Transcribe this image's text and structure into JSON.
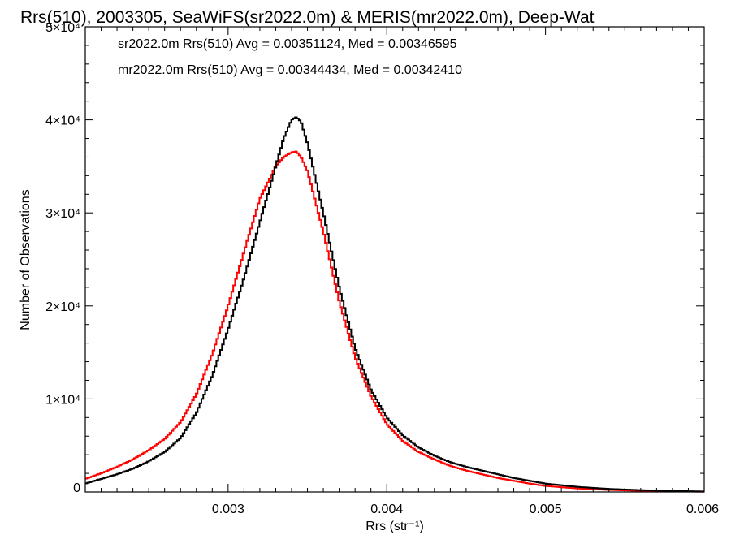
{
  "chart_data": {
    "type": "line",
    "title": "Rrs(510), 2003305, SeaWiFS(sr2022.0m) & MERIS(mr2022.0m), Deep-Wat",
    "xlabel": "Rrs (str⁻¹)",
    "ylabel": "Number of Observations",
    "xlim": [
      0.0021,
      0.006
    ],
    "ylim": [
      0,
      50000
    ],
    "x_ticks": [
      {
        "value": 0.003,
        "label": "0.003"
      },
      {
        "value": 0.004,
        "label": "0.004"
      },
      {
        "value": 0.005,
        "label": "0.005"
      },
      {
        "value": 0.006,
        "label": "0.006"
      }
    ],
    "y_ticks": [
      {
        "value": 0,
        "label": "0"
      },
      {
        "value": 10000,
        "label": "1×10⁴"
      },
      {
        "value": 20000,
        "label": "2×10⁴"
      },
      {
        "value": 30000,
        "label": "3×10⁴"
      },
      {
        "value": 40000,
        "label": "4×10⁴"
      },
      {
        "value": 50000,
        "label": "5×10⁴"
      }
    ],
    "annotations": [
      {
        "text": "sr2022.0m Rrs(510) Avg = 0.00351124, Med = 0.00346595",
        "color": "#000000"
      },
      {
        "text": "mr2022.0m Rrs(510) Avg = 0.00344434, Med = 0.00342410",
        "color": "#ff0000"
      }
    ],
    "series": [
      {
        "color": "#000000",
        "x": [
          0.0021,
          0.0022,
          0.0023,
          0.0024,
          0.0025,
          0.0026,
          0.0027,
          0.0028,
          0.0029,
          0.003,
          0.0031,
          0.0032,
          0.0033,
          0.00335,
          0.0034,
          0.00343,
          0.00346,
          0.0035,
          0.0036,
          0.0037,
          0.0038,
          0.0039,
          0.004,
          0.0041,
          0.0042,
          0.0043,
          0.0044,
          0.0045,
          0.0046,
          0.0047,
          0.0048,
          0.0049,
          0.005,
          0.0052,
          0.0054,
          0.0056,
          0.0058,
          0.006
        ],
        "values": [
          900,
          1400,
          1900,
          2500,
          3300,
          4300,
          5800,
          8500,
          12500,
          17500,
          23000,
          29000,
          35000,
          38000,
          40000,
          40300,
          39800,
          37500,
          30000,
          22000,
          15500,
          11000,
          8000,
          6100,
          4800,
          3900,
          3200,
          2700,
          2300,
          1900,
          1500,
          1200,
          900,
          550,
          330,
          200,
          110,
          50
        ]
      },
      {
        "color": "#ff0000",
        "x": [
          0.0021,
          0.0022,
          0.0023,
          0.0024,
          0.0025,
          0.0026,
          0.0027,
          0.0028,
          0.0029,
          0.003,
          0.0031,
          0.0032,
          0.0033,
          0.00335,
          0.0034,
          0.00343,
          0.00346,
          0.0035,
          0.0036,
          0.0037,
          0.0038,
          0.0039,
          0.004,
          0.0041,
          0.0042,
          0.0043,
          0.0044,
          0.0045,
          0.0046,
          0.0047,
          0.0048,
          0.0049,
          0.005,
          0.0052,
          0.0054,
          0.0056,
          0.0058,
          0.006
        ],
        "values": [
          1400,
          2000,
          2700,
          3500,
          4500,
          5700,
          7500,
          10500,
          14800,
          20000,
          25800,
          31500,
          35000,
          36000,
          36500,
          36600,
          36000,
          34500,
          28000,
          20500,
          14500,
          10300,
          7300,
          5500,
          4300,
          3500,
          2800,
          2300,
          1900,
          1500,
          1200,
          900,
          650,
          380,
          220,
          120,
          60,
          30
        ]
      }
    ],
    "legend": "none",
    "grid": false
  }
}
